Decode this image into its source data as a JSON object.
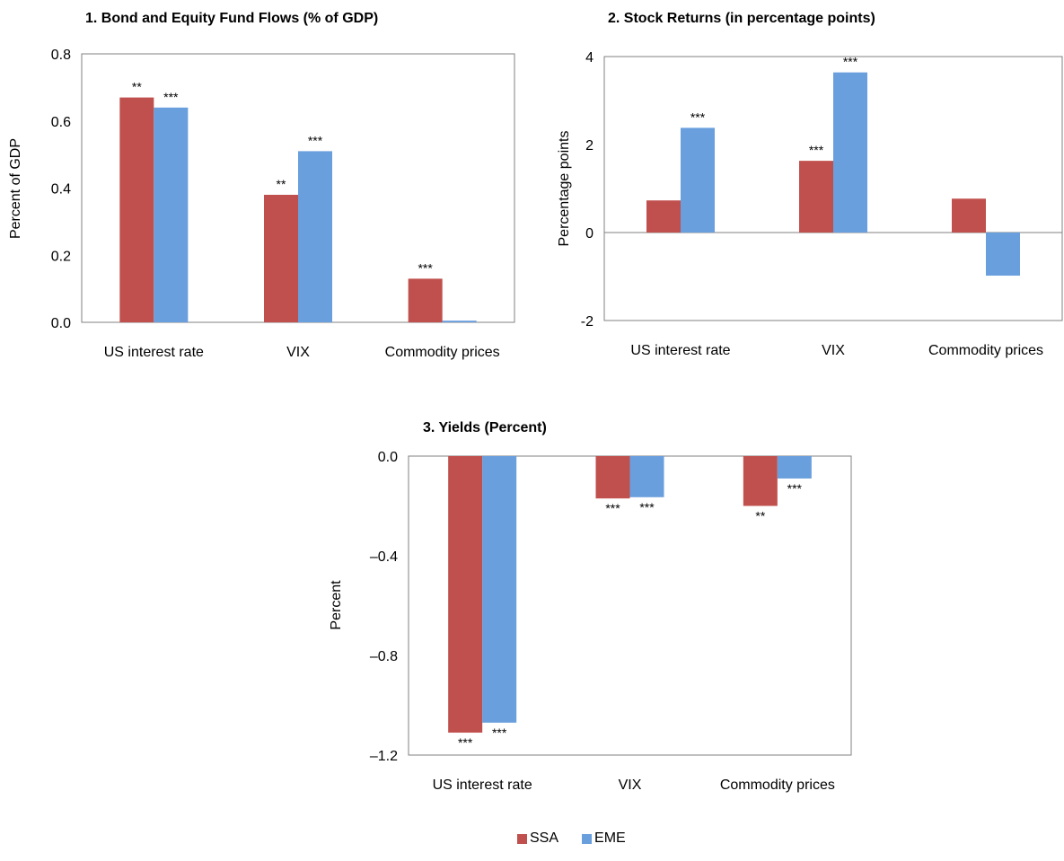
{
  "colors": {
    "SSA": "#C0504D",
    "EME": "#6A9FDD",
    "axis": "#808080"
  },
  "legend": [
    {
      "name": "SSA",
      "color": "#C0504D"
    },
    {
      "name": "EME",
      "color": "#6A9FDD"
    }
  ],
  "chart_data": [
    {
      "type": "bar",
      "title": "1. Bond and Equity Fund Flows (% of GDP)",
      "ylabel": "Percent of GDP",
      "categories": [
        "US interest rate",
        "VIX",
        "Commodity prices"
      ],
      "ylim": [
        0,
        0.8
      ],
      "yticks": [
        "0.0",
        "0.2",
        "0.4",
        "0.6",
        "0.8"
      ],
      "series": [
        {
          "name": "SSA",
          "values": [
            0.67,
            0.38,
            0.13
          ],
          "stars": [
            "**",
            "**",
            "***"
          ]
        },
        {
          "name": "EME",
          "values": [
            0.64,
            0.51,
            0.005
          ],
          "stars": [
            "***",
            "***",
            ""
          ]
        }
      ]
    },
    {
      "type": "bar",
      "title": "2. Stock Returns (in percentage  points)",
      "ylabel": "Percentage points",
      "categories": [
        "US interest rate",
        "VIX",
        "Commodity prices"
      ],
      "ylim": [
        -2,
        4
      ],
      "yticks": [
        "-2",
        "0",
        "2",
        "4"
      ],
      "series": [
        {
          "name": "SSA",
          "values": [
            0.73,
            1.63,
            0.77
          ],
          "stars": [
            "",
            "***",
            ""
          ]
        },
        {
          "name": "EME",
          "values": [
            2.38,
            3.64,
            -0.98
          ],
          "stars": [
            "***",
            "***",
            ""
          ]
        }
      ]
    },
    {
      "type": "bar",
      "title": "3. Yields (Percent)",
      "ylabel": "Percent",
      "categories": [
        "US interest rate",
        "VIX",
        "Commodity prices"
      ],
      "ylim": [
        -1.2,
        0
      ],
      "yticks": [
        "–1.2",
        "–0.8",
        "–0.4",
        "0.0"
      ],
      "series": [
        {
          "name": "SSA",
          "values": [
            -1.11,
            -0.17,
            -0.2
          ],
          "stars": [
            "***",
            "***",
            "**"
          ]
        },
        {
          "name": "EME",
          "values": [
            -1.07,
            -0.165,
            -0.09
          ],
          "stars": [
            "***",
            "***",
            "***"
          ]
        }
      ]
    }
  ]
}
